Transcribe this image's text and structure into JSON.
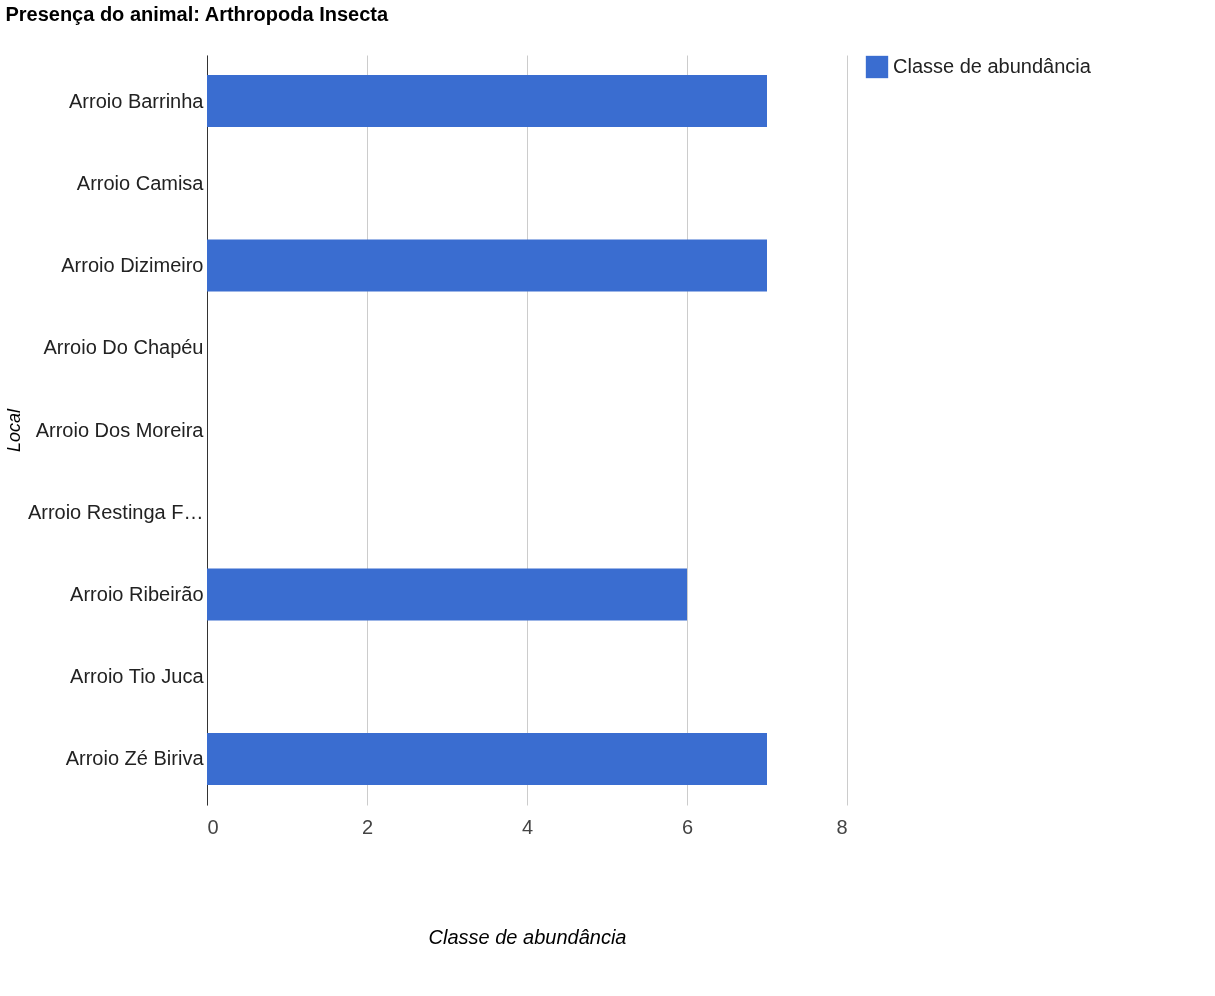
{
  "chart_data": {
    "type": "bar",
    "orientation": "horizontal",
    "title": "Presença do animal: Arthropoda Insecta",
    "xlabel": "Classe de abundância",
    "ylabel": "Local",
    "categories": [
      "Arroio Barrinha",
      "Arroio Camisa",
      "Arroio Dizimeiro",
      "Arroio Do Chapéu",
      "Arroio Dos Moreira",
      "Arroio Restinga F…",
      "Arroio Ribeirão",
      "Arroio Tio Juca",
      "Arroio Zé Biriva"
    ],
    "series": [
      {
        "name": "Classe de abundância",
        "color": "#3a6dd0",
        "values": [
          7,
          null,
          7,
          null,
          null,
          null,
          6,
          null,
          7
        ]
      }
    ],
    "xlim": [
      0,
      8
    ],
    "xticks": [
      0,
      2,
      4,
      6,
      8
    ],
    "grid": "x",
    "legend": "top right"
  }
}
